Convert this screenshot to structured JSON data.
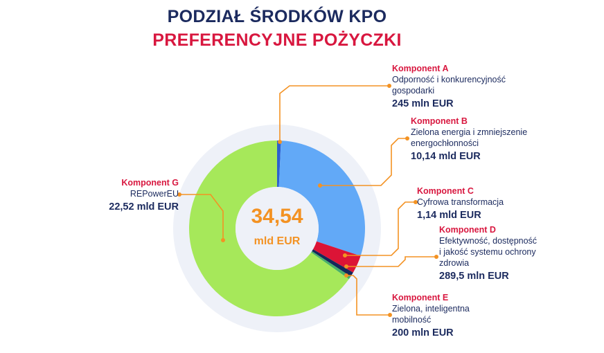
{
  "header": {
    "title": "PODZIAŁ ŚRODKÓW KPO",
    "subtitle": "PREFERENCYJNE POŻYCZKI"
  },
  "center": {
    "value": "34,54",
    "unit": "mld EUR"
  },
  "colors": {
    "accent": "#f39223",
    "title": "#1b2a5e",
    "subtitle": "#d8173f",
    "outer_ring": "#eef1f8",
    "inner_circle": "#eef1f8"
  },
  "chart_data": {
    "type": "donut",
    "unit": "mld EUR",
    "total": 34.54,
    "slices": [
      {
        "name": "Komponent A",
        "description": "Odporność i konkurencyjność gospodarki",
        "desc_lines": [
          "Odporność i konkurencyjność",
          "gospodarki"
        ],
        "value": 0.245,
        "value_label": "245 mln EUR",
        "color": "#2e5fce"
      },
      {
        "name": "Komponent B",
        "description": "Zielona energia i zmniejszenie energochłonności",
        "desc_lines": [
          "Zielona energia i zmniejszenie",
          "energochłonności"
        ],
        "value": 10.14,
        "value_label": "10,14 mld EUR",
        "color": "#62a9f7"
      },
      {
        "name": "Komponent C",
        "description": "Cyfrowa transformacja",
        "desc_lines": [
          "Cyfrowa transformacja"
        ],
        "value": 1.14,
        "value_label": "1,14 mld EUR",
        "color": "#dc1436"
      },
      {
        "name": "Komponent D",
        "description": "Efektywność, dostępność i jakość systemu ochrony zdrowia",
        "desc_lines": [
          "Efektywność, dostępność",
          "i jakość systemu ochrony",
          "zdrowia"
        ],
        "value": 0.2895,
        "value_label": "289,5 mln EUR",
        "color": "#14285a"
      },
      {
        "name": "Komponent E",
        "description": "Zielona, inteligentna mobilność",
        "desc_lines": [
          "Zielona, inteligentna",
          "mobilność"
        ],
        "value": 0.2,
        "value_label": "200 mln EUR",
        "color": "#49b06a"
      },
      {
        "name": "Komponent G",
        "description": "REPowerEU",
        "desc_lines": [
          "REPowerEU"
        ],
        "value": 22.52,
        "value_label": "22,52 mld EUR",
        "color": "#a6e85a"
      }
    ]
  }
}
